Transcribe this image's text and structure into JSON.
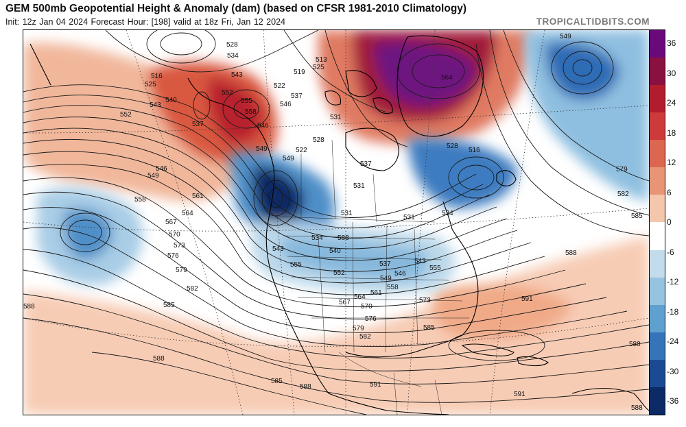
{
  "header": {
    "title": "GEM 500mb Geopotential Height & Anomaly (dam) (based on CFSR 1981-2010 Climatology)",
    "subtitle": "Init: 12z Jan 04 2024   Forecast Hour: [198]   valid at 18z Fri, Jan 12 2024",
    "brand": "TROPICALTIDBITS.COM"
  },
  "colorbar": {
    "labels": [
      "36",
      "30",
      "24",
      "18",
      "12",
      "6",
      "0",
      "-6",
      "-12",
      "-18",
      "-24",
      "-30",
      "-36"
    ],
    "colors": [
      "#6a0a7a",
      "#8a1040",
      "#b21d2d",
      "#cc3a3a",
      "#dc6650",
      "#e89576",
      "#f4c7ad",
      "#ffffff",
      "#c3dcec",
      "#96c3e0",
      "#5fa0cf",
      "#3574b8",
      "#1b4a93",
      "#0c2a66"
    ]
  },
  "contour_labels": [
    {
      "text": "549"
    },
    {
      "text": "528"
    },
    {
      "text": "534"
    },
    {
      "text": "543"
    },
    {
      "text": "519"
    },
    {
      "text": "513"
    },
    {
      "text": "525"
    },
    {
      "text": "516"
    },
    {
      "text": "525"
    },
    {
      "text": "540"
    },
    {
      "text": "552"
    },
    {
      "text": "543"
    },
    {
      "text": "552"
    },
    {
      "text": "558"
    },
    {
      "text": "537"
    },
    {
      "text": "546"
    },
    {
      "text": "522"
    },
    {
      "text": "537"
    },
    {
      "text": "555"
    },
    {
      "text": "564"
    },
    {
      "text": "546"
    },
    {
      "text": "549"
    },
    {
      "text": "549"
    },
    {
      "text": "522"
    },
    {
      "text": "528"
    },
    {
      "text": "531"
    },
    {
      "text": "528"
    },
    {
      "text": "516"
    },
    {
      "text": "537"
    },
    {
      "text": "546"
    },
    {
      "text": "549"
    },
    {
      "text": "558"
    },
    {
      "text": "561"
    },
    {
      "text": "564"
    },
    {
      "text": "567"
    },
    {
      "text": "570"
    },
    {
      "text": "573"
    },
    {
      "text": "576"
    },
    {
      "text": "579"
    },
    {
      "text": "582"
    },
    {
      "text": "585"
    },
    {
      "text": "588"
    },
    {
      "text": "531"
    },
    {
      "text": "531"
    },
    {
      "text": "534"
    },
    {
      "text": "534"
    },
    {
      "text": "540"
    },
    {
      "text": "543"
    },
    {
      "text": "555"
    },
    {
      "text": "552"
    },
    {
      "text": "537"
    },
    {
      "text": "543"
    },
    {
      "text": "546"
    },
    {
      "text": "549"
    },
    {
      "text": "555"
    },
    {
      "text": "558"
    },
    {
      "text": "561"
    },
    {
      "text": "564"
    },
    {
      "text": "567"
    },
    {
      "text": "570"
    },
    {
      "text": "573"
    },
    {
      "text": "576"
    },
    {
      "text": "579"
    },
    {
      "text": "582"
    },
    {
      "text": "585"
    },
    {
      "text": "588"
    },
    {
      "text": "591"
    },
    {
      "text": "591"
    },
    {
      "text": "591"
    },
    {
      "text": "579"
    },
    {
      "text": "582"
    },
    {
      "text": "585"
    },
    {
      "text": "588"
    },
    {
      "text": "588"
    },
    {
      "text": "588"
    },
    {
      "text": "588"
    },
    {
      "text": "585"
    },
    {
      "text": "588"
    },
    {
      "text": "531"
    }
  ]
}
